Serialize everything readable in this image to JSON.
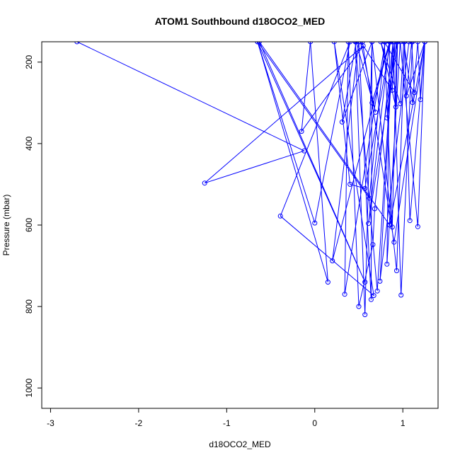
{
  "chart_data": {
    "type": "line",
    "title": "ATOM1 Southbound d18OCO2_MED",
    "xlabel": "d18OCO2_MED",
    "ylabel": "Pressure (mbar)",
    "xlim": [
      -3.1,
      1.4
    ],
    "ylim": [
      1050,
      150
    ],
    "y_reversed": true,
    "xticks": [
      -3,
      -2,
      -1,
      0,
      1
    ],
    "xtick_labels": [
      "-3",
      "-2",
      "-1",
      "0",
      "1"
    ],
    "yticks": [
      200,
      400,
      600,
      800,
      1000
    ],
    "ytick_labels": [
      "200",
      "400",
      "600",
      "800",
      "1000"
    ],
    "grid": false,
    "legend": "none",
    "series_color": "#0000ff",
    "series": [
      {
        "style": "line+markers",
        "x": [
          -2.7,
          -0.12,
          -1.25,
          0.55,
          -0.15,
          -0.05,
          0.15,
          -0.65,
          0.0,
          0.4,
          -0.39,
          0.67,
          0.22,
          0.4,
          0.57,
          0.86,
          0.65,
          0.85,
          0.2,
          0.5,
          0.64,
          0.65,
          0.31,
          0.47,
          0.69,
          0.52,
          0.88,
          0.91,
          0.82,
          0.94,
          0.92,
          0.75,
          0.97,
          1.01,
          1.11,
          1.17,
          1.2,
          1.25,
          1.04,
          1.1,
          1.13,
          0.79,
          0.88,
          0.93,
          0.61,
          0.85,
          0.82,
          0.97,
          1.17,
          1.25,
          1.08,
          1.02,
          0.93,
          0.65,
          0.57,
          0.46,
          0.71,
          0.89,
          0.74,
          1.07,
          1.11,
          0.98,
          0.89,
          0.68,
          0.66,
          0.5,
          0.38,
          0.34,
          0.8,
          0.62,
          -0.65,
          0.57,
          -0.63,
          0.85,
          1.25,
          0.9,
          0.54,
          0.87
        ],
        "y": [
          150,
          418,
          497,
          160,
          370,
          150,
          740,
          150,
          595,
          150,
          578,
          773,
          150,
          500,
          510,
          150,
          300,
          150,
          688,
          150,
          783,
          150,
          347,
          150,
          323,
          150,
          269,
          150,
          337,
          150,
          310,
          150,
          302,
          150,
          299,
          150,
          292,
          150,
          283,
          150,
          275,
          150,
          605,
          150,
          596,
          150,
          696,
          150,
          604,
          150,
          589,
          150,
          712,
          150,
          820,
          150,
          762,
          150,
          738,
          150,
          150,
          772,
          150,
          560,
          648,
          800,
          150,
          770,
          150,
          534,
          150,
          740,
          150,
          600,
          150,
          642,
          150,
          150
        ]
      }
    ]
  }
}
